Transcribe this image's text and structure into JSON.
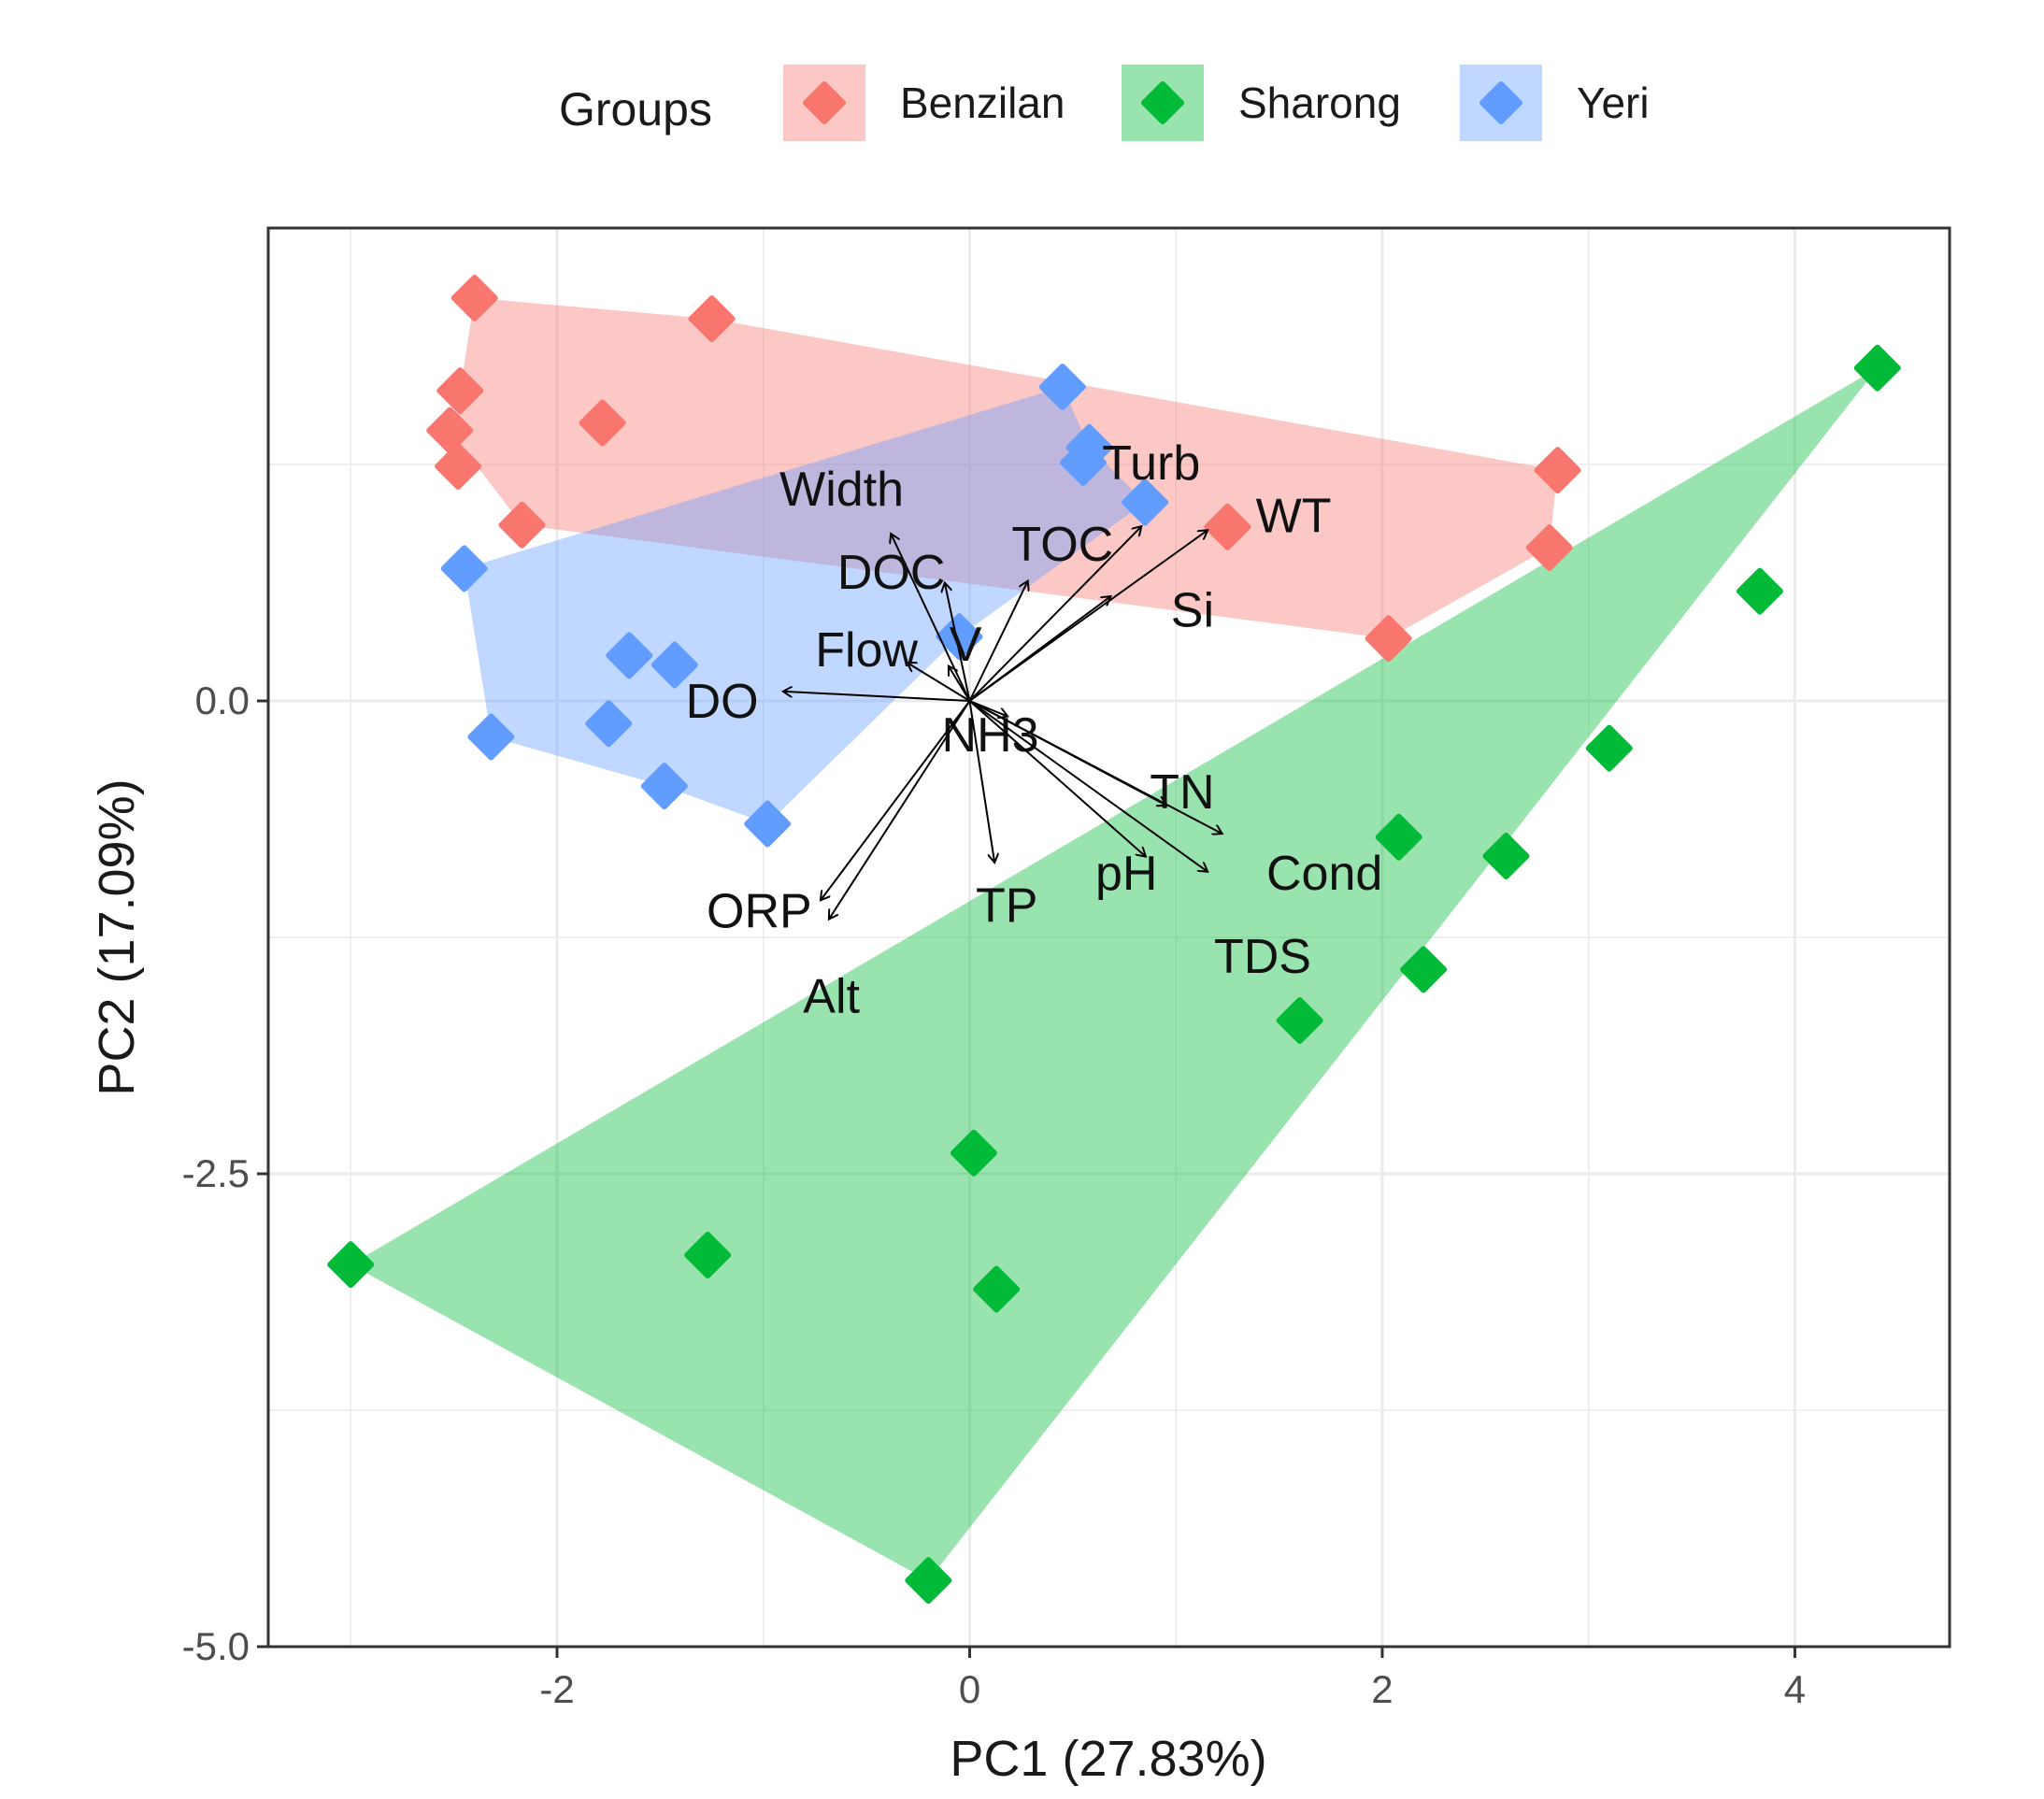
{
  "chart_data": {
    "type": "scatter",
    "title": "",
    "xlabel": "PC1 (27.83%)",
    "ylabel": "PC2 (17.09%)",
    "xlim": [
      -3.4,
      4.75
    ],
    "ylim": [
      -5.0,
      2.5
    ],
    "x_ticks": [
      -2,
      0,
      2,
      4
    ],
    "y_ticks": [
      -5.0,
      -2.5,
      0.0
    ],
    "x_tick_labels": [
      "-2",
      "0",
      "2",
      "4"
    ],
    "y_tick_labels": [
      "-5.0",
      "-2.5",
      "0.0"
    ],
    "grid": true,
    "legend": {
      "title": "Groups",
      "position": "top",
      "entries": [
        "Benzilan",
        "Sharong",
        "Yeri"
      ]
    },
    "series": [
      {
        "name": "Benzilan",
        "color": "#F8766D",
        "points": [
          {
            "x": -2.4,
            "y": 2.13
          },
          {
            "x": -1.25,
            "y": 2.02
          },
          {
            "x": -2.47,
            "y": 1.64
          },
          {
            "x": -1.78,
            "y": 1.47
          },
          {
            "x": -2.52,
            "y": 1.43
          },
          {
            "x": -2.48,
            "y": 1.24
          },
          {
            "x": -2.17,
            "y": 0.93
          },
          {
            "x": 2.85,
            "y": 1.22
          },
          {
            "x": 2.81,
            "y": 0.81
          },
          {
            "x": 1.25,
            "y": 0.92
          },
          {
            "x": 2.03,
            "y": 0.33
          }
        ],
        "hull": [
          [
            -2.4,
            2.13
          ],
          [
            -1.25,
            2.02
          ],
          [
            2.85,
            1.22
          ],
          [
            2.81,
            0.81
          ],
          [
            2.03,
            0.33
          ],
          [
            -2.17,
            0.93
          ],
          [
            -2.52,
            1.43
          ],
          [
            -2.47,
            1.64
          ]
        ]
      },
      {
        "name": "Sharong",
        "color": "#00BA38",
        "points": [
          {
            "x": 4.4,
            "y": 1.76
          },
          {
            "x": 3.83,
            "y": 0.58
          },
          {
            "x": 3.1,
            "y": -0.25
          },
          {
            "x": 2.08,
            "y": -0.72
          },
          {
            "x": 2.6,
            "y": -0.82
          },
          {
            "x": 2.2,
            "y": -1.42
          },
          {
            "x": 1.6,
            "y": -1.69
          },
          {
            "x": 0.02,
            "y": -2.39
          },
          {
            "x": -1.27,
            "y": -2.93
          },
          {
            "x": 0.13,
            "y": -3.11
          },
          {
            "x": -3.0,
            "y": -2.98
          },
          {
            "x": -0.2,
            "y": -4.65
          }
        ],
        "hull": [
          [
            4.4,
            1.76
          ],
          [
            -0.2,
            -4.65
          ],
          [
            -3.0,
            -2.98
          ]
        ]
      },
      {
        "name": "Yeri",
        "color": "#619CFF",
        "points": [
          {
            "x": 0.45,
            "y": 1.66
          },
          {
            "x": 0.58,
            "y": 1.34
          },
          {
            "x": 0.55,
            "y": 1.26
          },
          {
            "x": 0.85,
            "y": 1.05
          },
          {
            "x": -2.45,
            "y": 0.7
          },
          {
            "x": -1.65,
            "y": 0.24
          },
          {
            "x": -1.43,
            "y": 0.19
          },
          {
            "x": -1.75,
            "y": -0.12
          },
          {
            "x": -2.32,
            "y": -0.19
          },
          {
            "x": -1.48,
            "y": -0.45
          },
          {
            "x": -0.98,
            "y": -0.65
          },
          {
            "x": -0.05,
            "y": 0.34
          }
        ],
        "hull": [
          [
            0.45,
            1.66
          ],
          [
            0.58,
            1.34
          ],
          [
            0.85,
            1.05
          ],
          [
            -0.05,
            0.34
          ],
          [
            -0.98,
            -0.65
          ],
          [
            -1.48,
            -0.45
          ],
          [
            -2.32,
            -0.19
          ],
          [
            -2.45,
            0.7
          ]
        ]
      }
    ],
    "loadings": [
      {
        "name": "Width",
        "x": -0.38,
        "y": 0.88,
        "label_x": -0.62,
        "label_y": 1.1
      },
      {
        "name": "DOC",
        "x": -0.12,
        "y": 0.62,
        "label_x": -0.38,
        "label_y": 0.66
      },
      {
        "name": "TOC",
        "x": 0.28,
        "y": 0.63,
        "label_x": 0.45,
        "label_y": 0.81
      },
      {
        "name": "Turb",
        "x": 0.83,
        "y": 0.92,
        "label_x": 0.88,
        "label_y": 1.24
      },
      {
        "name": "WT",
        "x": 1.15,
        "y": 0.9,
        "label_x": 1.57,
        "label_y": 0.96
      },
      {
        "name": "Si",
        "x": 0.68,
        "y": 0.55,
        "label_x": 1.08,
        "label_y": 0.46
      },
      {
        "name": "Flow",
        "x": -0.3,
        "y": 0.2,
        "label_x": -0.5,
        "label_y": 0.25
      },
      {
        "name": "V",
        "x": -0.1,
        "y": 0.18,
        "label_x": -0.02,
        "label_y": 0.28
      },
      {
        "name": "DO",
        "x": -0.9,
        "y": 0.05,
        "label_x": -1.2,
        "label_y": -0.02
      },
      {
        "name": "NH3",
        "x": 0.18,
        "y": -0.08,
        "label_x": 0.1,
        "label_y": -0.2
      },
      {
        "name": "TN",
        "x": 0.95,
        "y": -0.55,
        "label_x": 1.03,
        "label_y": -0.5
      },
      {
        "name": "Cond",
        "x": 1.22,
        "y": -0.7,
        "label_x": 1.72,
        "label_y": -0.93
      },
      {
        "name": "pH",
        "x": 0.85,
        "y": -0.82,
        "label_x": 0.76,
        "label_y": -0.93
      },
      {
        "name": "TDS",
        "x": 1.15,
        "y": -0.9,
        "label_x": 1.42,
        "label_y": -1.37
      },
      {
        "name": "TP",
        "x": 0.12,
        "y": -0.85,
        "label_x": 0.18,
        "label_y": -1.1
      },
      {
        "name": "ORP",
        "x": -0.72,
        "y": -1.05,
        "label_x": -1.02,
        "label_y": -1.13
      },
      {
        "name": "Alt",
        "x": -0.68,
        "y": -1.15,
        "label_x": -0.67,
        "label_y": -1.58
      }
    ]
  }
}
